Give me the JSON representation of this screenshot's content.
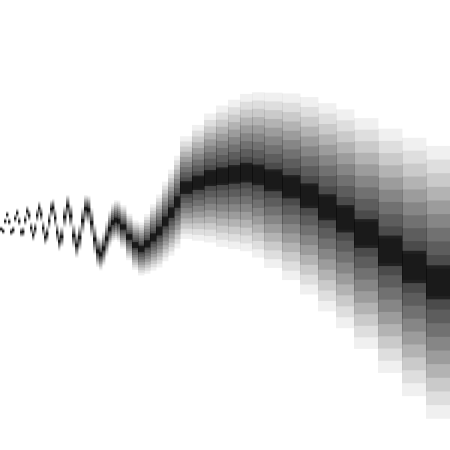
{
  "image": {
    "background_color": "#ffffff",
    "ink_color": "#000000",
    "ink_fade_color": "#ffffff"
  }
}
